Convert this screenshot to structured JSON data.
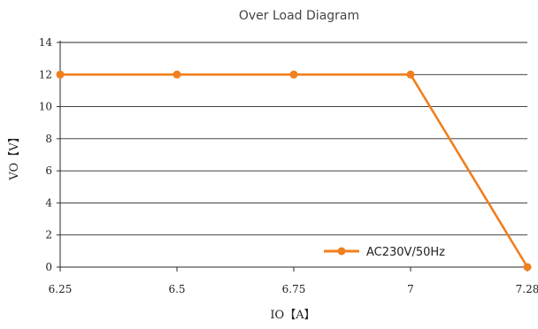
{
  "chart_data": {
    "type": "line",
    "title": "Over Load Diagram",
    "xlabel": "IO【A】",
    "ylabel": "VO【V】",
    "x_ticks": [
      "6.25",
      "6.5",
      "6.75",
      "7",
      "7.28"
    ],
    "y_ticks": [
      "0",
      "2",
      "4",
      "6",
      "8",
      "10",
      "12",
      "14"
    ],
    "ylim": [
      0,
      14
    ],
    "grid": "horizontal",
    "legend_position": "bottom-right",
    "series": [
      {
        "name": "AC230V/50Hz",
        "color": "#f07f1e",
        "x": [
          6.25,
          6.5,
          6.75,
          7,
          7.28
        ],
        "y": [
          12,
          12,
          12,
          12,
          0
        ]
      }
    ]
  }
}
